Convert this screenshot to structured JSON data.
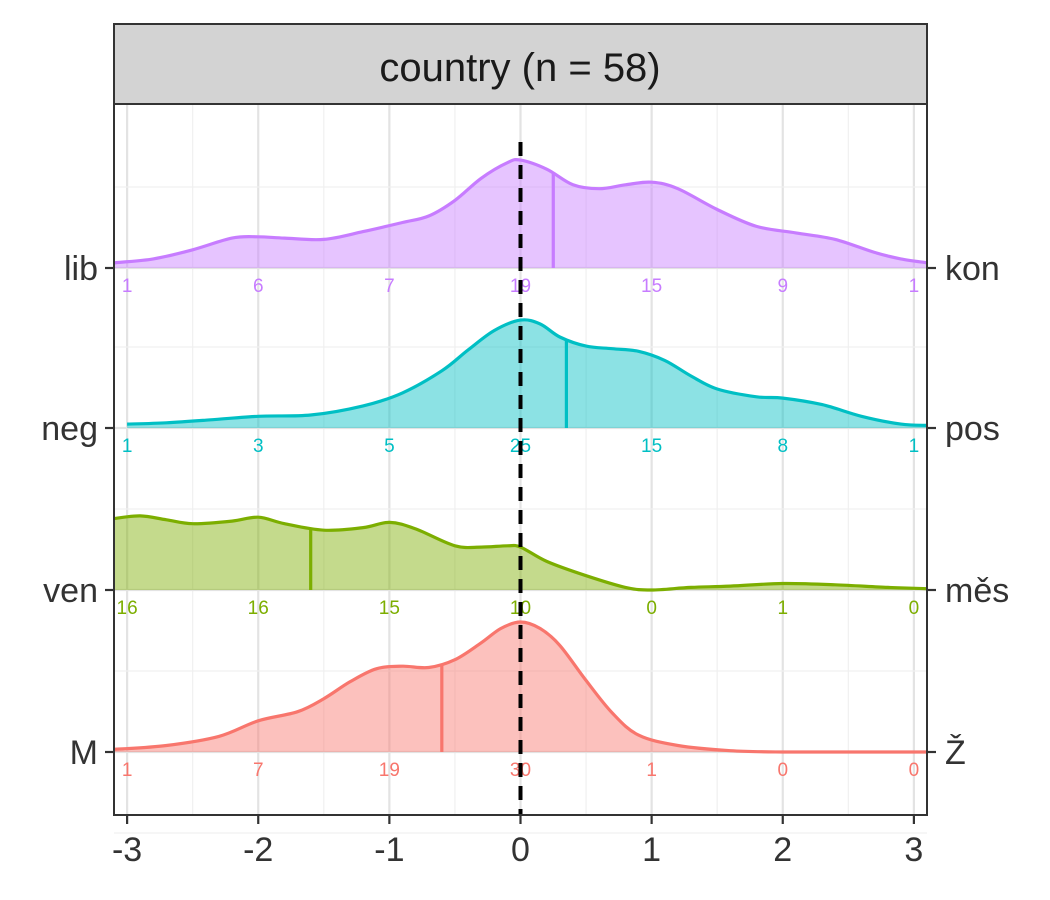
{
  "chart_data": {
    "type": "ridgeline-density",
    "facet_title": "country (n = 58)",
    "x_ticks": [
      -3,
      -2,
      -1,
      0,
      1,
      2,
      3
    ],
    "x_tick_labels": [
      "-3",
      "-2",
      "-1",
      "0",
      "1",
      "2",
      "3"
    ],
    "xlim": [
      -3.1,
      3.1
    ],
    "reference_line_x": 0,
    "count_positions": [
      -3,
      -2,
      -1,
      0,
      1,
      2,
      3
    ],
    "grid": true,
    "series": [
      {
        "key": "M",
        "left_label": "M",
        "right_label": "Ž",
        "color": "#F8766D",
        "mean": -0.6,
        "counts": [
          1,
          7,
          19,
          30,
          1,
          0,
          0
        ],
        "density_x": [
          -3.1,
          -2.7,
          -2.3,
          -2.0,
          -1.7,
          -1.5,
          -1.3,
          -1.1,
          -0.9,
          -0.7,
          -0.5,
          -0.3,
          -0.15,
          0.0,
          0.15,
          0.3,
          0.5,
          0.7,
          0.9,
          1.2,
          1.6,
          2.0,
          2.5,
          3.1
        ],
        "density_y": [
          0.02,
          0.05,
          0.12,
          0.24,
          0.31,
          0.41,
          0.54,
          0.64,
          0.66,
          0.65,
          0.71,
          0.84,
          0.95,
          1.0,
          0.95,
          0.82,
          0.55,
          0.3,
          0.13,
          0.05,
          0.01,
          0.0,
          0.0,
          0.0
        ]
      },
      {
        "key": "ven",
        "left_label": "ven",
        "right_label": "měs",
        "color": "#7CAE00",
        "mean": -1.6,
        "counts": [
          16,
          16,
          15,
          10,
          0,
          1,
          0
        ],
        "density_x": [
          -3.1,
          -2.9,
          -2.7,
          -2.5,
          -2.2,
          -2.0,
          -1.8,
          -1.5,
          -1.2,
          -1.0,
          -0.8,
          -0.5,
          -0.3,
          -0.1,
          0.0,
          0.2,
          0.5,
          0.8,
          1.0,
          1.3,
          1.6,
          2.0,
          2.4,
          2.8,
          3.1
        ],
        "density_y": [
          0.55,
          0.57,
          0.54,
          0.51,
          0.53,
          0.56,
          0.51,
          0.46,
          0.48,
          0.52,
          0.47,
          0.34,
          0.33,
          0.34,
          0.33,
          0.22,
          0.11,
          0.02,
          0.0,
          0.02,
          0.03,
          0.05,
          0.04,
          0.02,
          0.01
        ]
      },
      {
        "key": "neg",
        "left_label": "neg",
        "right_label": "pos",
        "color": "#00BFC4",
        "mean": 0.35,
        "counts": [
          1,
          3,
          5,
          25,
          15,
          8,
          1
        ],
        "density_x": [
          -3.0,
          -2.7,
          -2.4,
          -2.0,
          -1.6,
          -1.2,
          -0.9,
          -0.6,
          -0.4,
          -0.2,
          0.0,
          0.15,
          0.3,
          0.5,
          0.7,
          0.9,
          1.1,
          1.3,
          1.5,
          1.8,
          2.0,
          2.3,
          2.6,
          2.9,
          3.1
        ],
        "density_y": [
          0.03,
          0.04,
          0.06,
          0.09,
          0.1,
          0.17,
          0.27,
          0.44,
          0.6,
          0.75,
          0.83,
          0.8,
          0.7,
          0.63,
          0.61,
          0.59,
          0.52,
          0.4,
          0.3,
          0.24,
          0.23,
          0.18,
          0.09,
          0.03,
          0.02
        ]
      },
      {
        "key": "lib",
        "left_label": "lib",
        "right_label": "kon",
        "color": "#C77CFF",
        "mean": 0.25,
        "counts": [
          1,
          6,
          7,
          19,
          15,
          9,
          1
        ],
        "density_x": [
          -3.1,
          -2.8,
          -2.5,
          -2.2,
          -2.0,
          -1.8,
          -1.5,
          -1.2,
          -0.9,
          -0.7,
          -0.5,
          -0.3,
          -0.1,
          0.0,
          0.2,
          0.4,
          0.6,
          0.8,
          1.0,
          1.2,
          1.5,
          1.8,
          2.1,
          2.4,
          2.7,
          2.9,
          3.1
        ],
        "density_y": [
          0.04,
          0.07,
          0.14,
          0.23,
          0.24,
          0.23,
          0.22,
          0.28,
          0.35,
          0.4,
          0.52,
          0.69,
          0.81,
          0.83,
          0.76,
          0.64,
          0.61,
          0.64,
          0.66,
          0.61,
          0.45,
          0.32,
          0.27,
          0.22,
          0.12,
          0.07,
          0.04
        ]
      }
    ]
  }
}
